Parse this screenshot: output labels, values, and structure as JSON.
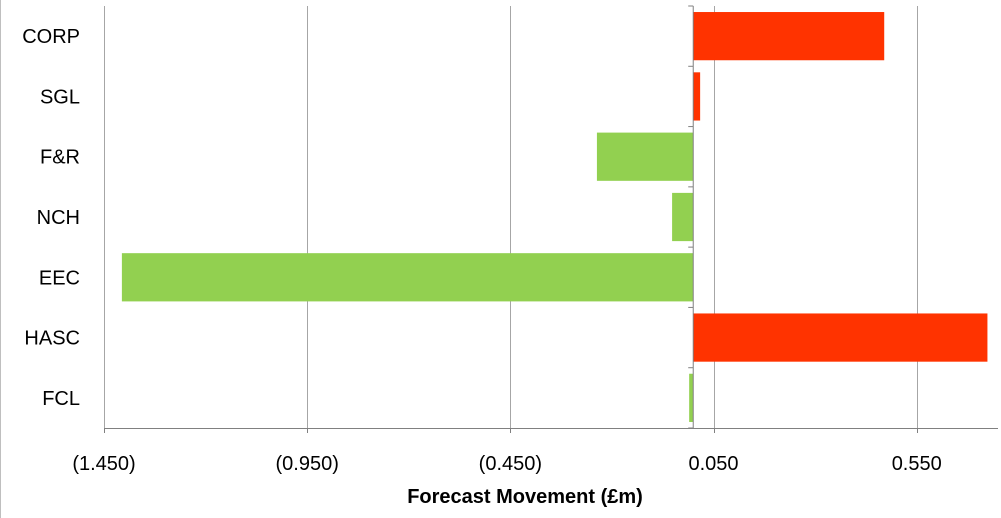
{
  "chart_data": {
    "type": "bar",
    "orientation": "horizontal",
    "categories": [
      "CORP",
      "SGL",
      "F&R",
      "NCH",
      "EEC",
      "HASC",
      "FCL"
    ],
    "values": [
      0.47,
      0.017,
      -0.237,
      -0.052,
      -1.406,
      0.724,
      -0.01
    ],
    "xlabel": "Forecast Movement (£m)",
    "ylabel": "",
    "xlim": [
      -1.45,
      0.75
    ],
    "x_ticks": [
      -1.45,
      -0.95,
      -0.45,
      0.05,
      0.55
    ],
    "x_tick_labels": [
      "(1.450)",
      "(0.950)",
      "(0.450)",
      "0.050",
      "0.550"
    ],
    "grid": "vertical",
    "legend": "none",
    "colors": {
      "positive": "#ff3300",
      "negative": "#92d050",
      "grid": "#a6a6a6",
      "axis": "#808080",
      "text": "#000000"
    }
  }
}
